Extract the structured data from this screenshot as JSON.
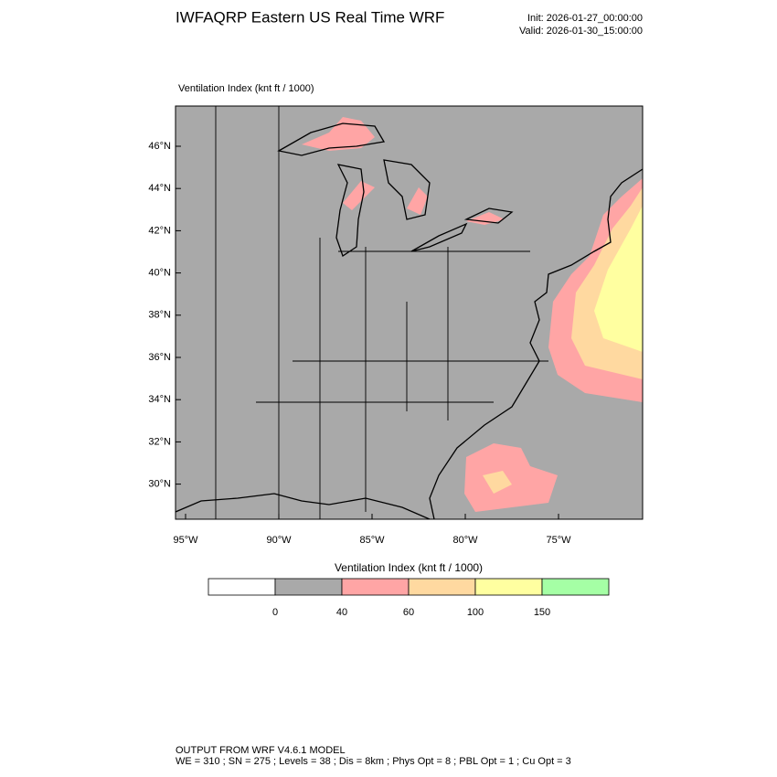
{
  "header": {
    "title": "IWFAQRP Eastern US Real Time WRF",
    "init": "Init: 2026-01-27_00:00:00",
    "valid": "Valid: 2026-01-30_15:00:00"
  },
  "map": {
    "panel_title": "Ventilation Index   (knt ft / 1000)",
    "lat_ticks": [
      {
        "value": 46,
        "label": "46°N"
      },
      {
        "value": 44,
        "label": "44°N"
      },
      {
        "value": 42,
        "label": "42°N"
      },
      {
        "value": 40,
        "label": "40°N"
      },
      {
        "value": 38,
        "label": "38°N"
      },
      {
        "value": 36,
        "label": "36°N"
      },
      {
        "value": 34,
        "label": "34°N"
      },
      {
        "value": 32,
        "label": "32°N"
      },
      {
        "value": 30,
        "label": "30°N"
      }
    ],
    "lon_ticks": [
      {
        "value": -95,
        "label": "95°W"
      },
      {
        "value": -90,
        "label": "90°W"
      },
      {
        "value": -85,
        "label": "85°W"
      },
      {
        "value": -80,
        "label": "80°W"
      },
      {
        "value": -75,
        "label": "75°W"
      }
    ]
  },
  "colorbar": {
    "title": "Ventilation Index  (knt ft / 1000)",
    "colors": [
      "#ffffff",
      "#a9a9a9",
      "#ffa5a5",
      "#ffd9a0",
      "#ffffa0",
      "#a5ffa5"
    ],
    "levels": [
      0,
      40,
      60,
      100,
      150
    ]
  },
  "footer": {
    "line1": "OUTPUT FROM WRF V4.6.1 MODEL",
    "line2": "WE = 310 ; SN = 275 ; Levels = 38 ; Dis = 8km ; Phys Opt = 8 ; PBL Opt = 1 ; Cu Opt = 3"
  }
}
